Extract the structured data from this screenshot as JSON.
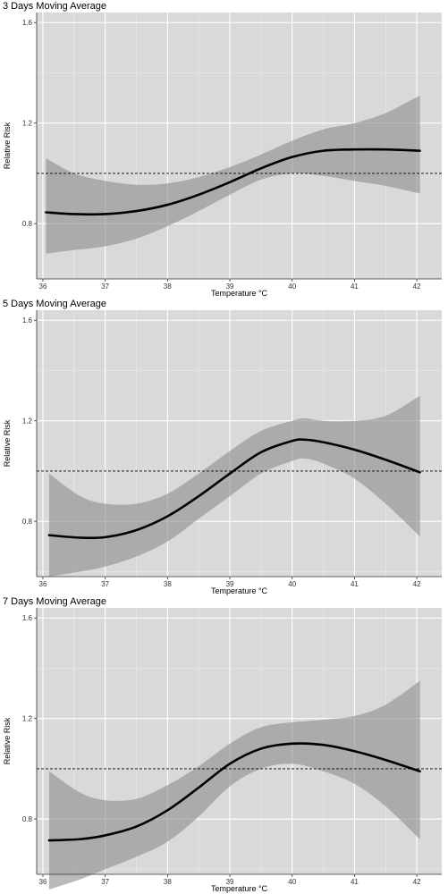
{
  "chart_data": [
    {
      "type": "line",
      "title": "3 Days Moving Average",
      "xlabel": "Temperature °C",
      "ylabel": "Relative Risk",
      "xlim": [
        35.9,
        42.4
      ],
      "ylim": [
        0.58,
        1.64
      ],
      "xticks": [
        36,
        37,
        38,
        39,
        40,
        41,
        42
      ],
      "yticks": [
        0.8,
        1.2,
        1.6
      ],
      "reference_line": 1.0,
      "grid": true,
      "series": [
        {
          "x": [
            36.05,
            36.5,
            37.0,
            37.5,
            38.0,
            38.5,
            39.0,
            39.5,
            40.0,
            40.5,
            41.0,
            41.5,
            42.05
          ],
          "y": [
            0.845,
            0.838,
            0.838,
            0.85,
            0.875,
            0.915,
            0.965,
            1.02,
            1.065,
            1.09,
            1.095,
            1.095,
            1.09
          ],
          "lower": [
            0.68,
            0.695,
            0.71,
            0.74,
            0.79,
            0.85,
            0.915,
            0.975,
            1.0,
            0.99,
            0.97,
            0.95,
            0.92
          ],
          "upper": [
            1.06,
            1.0,
            0.97,
            0.955,
            0.96,
            0.985,
            1.025,
            1.075,
            1.13,
            1.175,
            1.2,
            1.24,
            1.31
          ]
        }
      ]
    },
    {
      "type": "line",
      "title": "5 Days Moving Average",
      "xlabel": "Temperature °C",
      "ylabel": "Relative Risk",
      "xlim": [
        35.9,
        42.4
      ],
      "ylim": [
        0.58,
        1.64
      ],
      "xticks": [
        36,
        37,
        38,
        39,
        40,
        41,
        42
      ],
      "yticks": [
        0.8,
        1.2,
        1.6
      ],
      "reference_line": 1.0,
      "grid": true,
      "series": [
        {
          "x": [
            36.1,
            36.6,
            37.0,
            37.5,
            38.0,
            38.5,
            39.0,
            39.5,
            40.0,
            40.2,
            40.5,
            41.0,
            41.5,
            42.05
          ],
          "y": [
            0.745,
            0.735,
            0.737,
            0.765,
            0.82,
            0.9,
            0.99,
            1.075,
            1.12,
            1.125,
            1.115,
            1.085,
            1.045,
            0.995
          ],
          "lower": [
            0.58,
            0.6,
            0.62,
            0.66,
            0.72,
            0.81,
            0.9,
            0.99,
            1.04,
            1.05,
            1.03,
            0.97,
            0.87,
            0.74
          ],
          "upper": [
            0.99,
            0.9,
            0.87,
            0.87,
            0.91,
            0.99,
            1.08,
            1.16,
            1.2,
            1.21,
            1.2,
            1.2,
            1.22,
            1.3
          ]
        }
      ]
    },
    {
      "type": "line",
      "title": "7 Days Moving Average",
      "xlabel": "Temperature °C",
      "ylabel": "Relative Risk",
      "xlim": [
        35.9,
        42.4
      ],
      "ylim": [
        0.58,
        1.64
      ],
      "xticks": [
        36,
        37,
        38,
        39,
        40,
        41,
        42
      ],
      "yticks": [
        0.8,
        1.2,
        1.6
      ],
      "reference_line": 1.0,
      "grid": true,
      "series": [
        {
          "x": [
            36.1,
            36.6,
            37.0,
            37.5,
            38.0,
            38.5,
            39.0,
            39.5,
            40.0,
            40.5,
            41.0,
            41.5,
            42.05
          ],
          "y": [
            0.715,
            0.72,
            0.735,
            0.77,
            0.835,
            0.925,
            1.02,
            1.08,
            1.1,
            1.095,
            1.07,
            1.035,
            0.99
          ],
          "lower": [
            0.52,
            0.56,
            0.6,
            0.65,
            0.71,
            0.81,
            0.93,
            1.0,
            1.02,
            0.99,
            0.94,
            0.85,
            0.72
          ],
          "upper": [
            0.99,
            0.905,
            0.875,
            0.88,
            0.935,
            1.01,
            1.1,
            1.165,
            1.185,
            1.195,
            1.21,
            1.255,
            1.35
          ]
        }
      ]
    }
  ]
}
